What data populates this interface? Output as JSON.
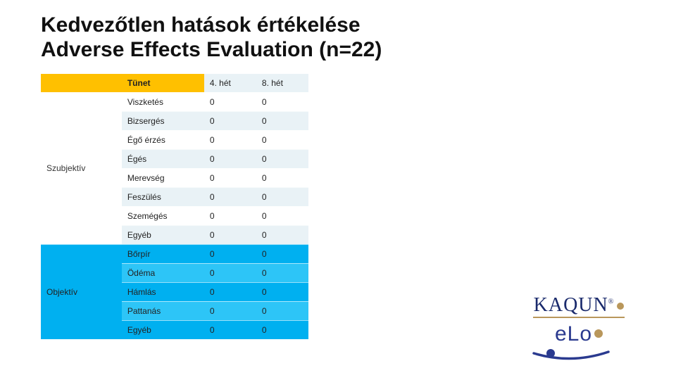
{
  "title": {
    "line1": "Kedvezőtlen hatások értékelése",
    "line2": "Adverse Effects Evaluation (n=22)"
  },
  "table": {
    "headers": {
      "symptom": "Tünet",
      "week4": "4. hét",
      "week8": "8. hét"
    },
    "groups": [
      {
        "label": "Szubjektív",
        "style": "sub",
        "rows": [
          {
            "name": "Viszketés",
            "w4": "0",
            "w8": "0"
          },
          {
            "name": "Bizsergés",
            "w4": "0",
            "w8": "0"
          },
          {
            "name": "Égő érzés",
            "w4": "0",
            "w8": "0"
          },
          {
            "name": "Égés",
            "w4": "0",
            "w8": "0"
          },
          {
            "name": "Merevség",
            "w4": "0",
            "w8": "0"
          },
          {
            "name": "Feszülés",
            "w4": "0",
            "w8": "0"
          },
          {
            "name": "Szemégés",
            "w4": "0",
            "w8": "0"
          },
          {
            "name": "Egyéb",
            "w4": "0",
            "w8": "0"
          }
        ]
      },
      {
        "label": "Objektív",
        "style": "obj",
        "rows": [
          {
            "name": "Bőrpír",
            "w4": "0",
            "w8": "0"
          },
          {
            "name": "Ödéma",
            "w4": "0",
            "w8": "0"
          },
          {
            "name": "Hámlás",
            "w4": "0",
            "w8": "0"
          },
          {
            "name": "Pattanás",
            "w4": "0",
            "w8": "0"
          },
          {
            "name": "Egyéb",
            "w4": "0",
            "w8": "0"
          }
        ]
      }
    ]
  },
  "logos": {
    "brand1": "KAQUN",
    "brand2": "eLo",
    "colors": {
      "navy": "#1a2a6c",
      "gold": "#b9975b",
      "blue": "#2a3a8f"
    }
  }
}
